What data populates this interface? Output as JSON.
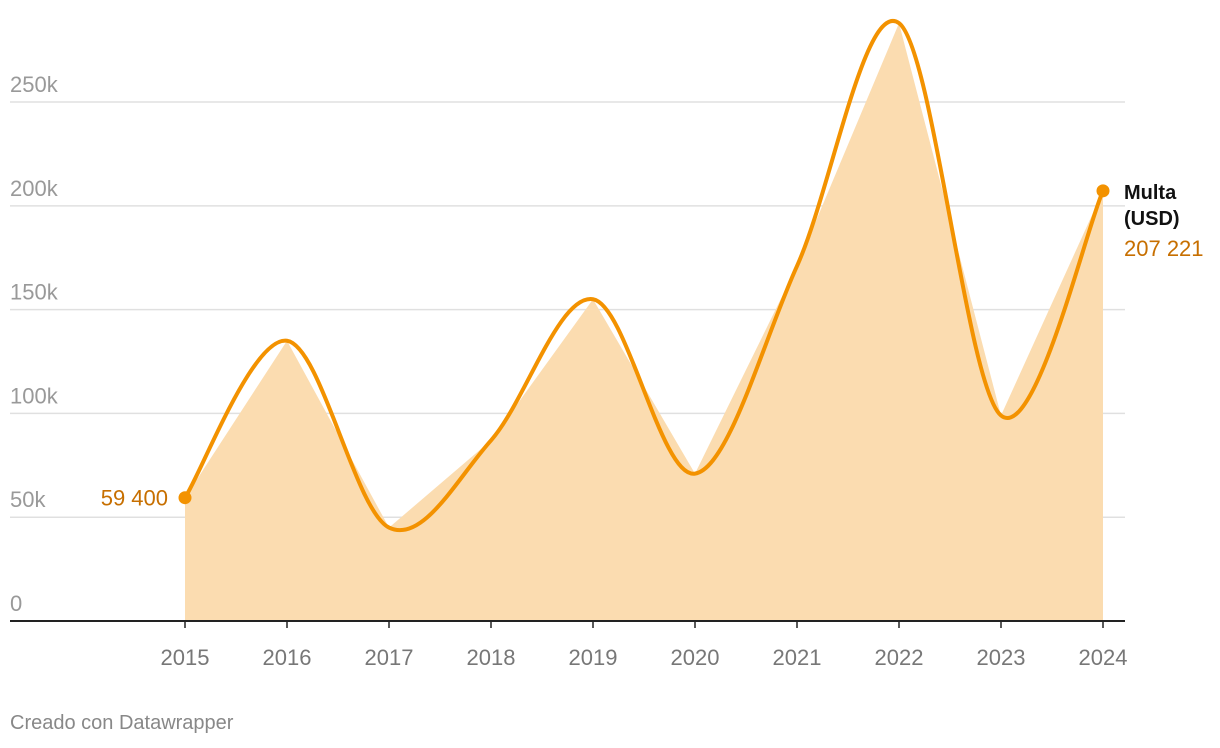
{
  "chart_data": {
    "type": "line",
    "categories": [
      "2015",
      "2016",
      "2017",
      "2018",
      "2019",
      "2020",
      "2021",
      "2022",
      "2023",
      "2024"
    ],
    "series": [
      {
        "name": "Multa (USD)",
        "color": "#f39200",
        "area_color": "#fbdcb0",
        "label_color": "#c76f00",
        "values": [
          59400,
          135000,
          45000,
          87000,
          155000,
          71000,
          171000,
          288000,
          99000,
          207221
        ],
        "value_labels": [
          "59 400",
          null,
          null,
          null,
          null,
          null,
          null,
          null,
          null,
          "207 221"
        ]
      }
    ],
    "ylim": [
      0,
      290000
    ],
    "yticks": [
      0,
      {
        "value": 50000,
        "label": "50k"
      },
      {
        "value": 100000,
        "label": "100k"
      },
      {
        "value": 150000,
        "label": "150k"
      },
      {
        "value": 200000,
        "label": "200k"
      },
      {
        "value": 250000,
        "label": "250k"
      }
    ],
    "grid": true,
    "credit": "Creado con Datawrapper"
  }
}
